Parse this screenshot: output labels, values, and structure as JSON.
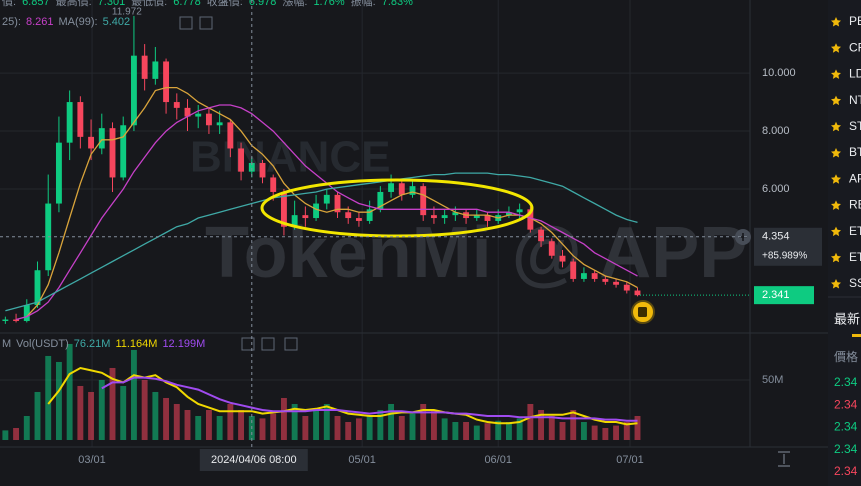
{
  "header": {
    "ohlc": [
      {
        "text": "價:",
        "color": "#848e9c"
      },
      {
        "text": "6.857",
        "color": "#0ecb81"
      },
      {
        "text": "最高價:",
        "color": "#848e9c"
      },
      {
        "text": "7.301",
        "color": "#0ecb81"
      },
      {
        "text": "最低價:",
        "color": "#848e9c"
      },
      {
        "text": "6.778",
        "color": "#0ecb81"
      },
      {
        "text": "收盤價:",
        "color": "#848e9c"
      },
      {
        "text": "6.978",
        "color": "#0ecb81"
      },
      {
        "text": "漲幅:",
        "color": "#848e9c"
      },
      {
        "text": "1.76%",
        "color": "#0ecb81"
      },
      {
        "text": "振幅:",
        "color": "#848e9c"
      },
      {
        "text": "7.83%",
        "color": "#0ecb81"
      }
    ],
    "ma": [
      {
        "text": "25):",
        "color": "#848e9c"
      },
      {
        "text": "8.261",
        "color": "#c640c8"
      },
      {
        "text": "MA(99):",
        "color": "#848e9c"
      },
      {
        "text": "5.402",
        "color": "#3fa9a6"
      }
    ],
    "vol": [
      {
        "text": "M",
        "color": "#848e9c"
      },
      {
        "text": "Vol(USDT)",
        "color": "#848e9c"
      },
      {
        "text": "76.21M",
        "color": "#3fa9a6"
      },
      {
        "text": "11.164M",
        "color": "#f0d800"
      },
      {
        "text": "12.199M",
        "color": "#a04bf0"
      }
    ]
  },
  "watermark": {
    "brand": "BINANCE",
    "text": "TokenMi @ APP"
  },
  "chart_data": {
    "type": "candlestick",
    "high_label": "11.972",
    "up_color": "#0ecb81",
    "down_color": "#f6465d",
    "xlim": [
      -0.5,
      69.5
    ],
    "xticks": [
      {
        "value": 8.09,
        "label": "03/01"
      },
      {
        "value": 33.3,
        "label": "05/01"
      },
      {
        "value": 46.0,
        "label": "06/01"
      },
      {
        "value": 58.3,
        "label": "07/01"
      }
    ],
    "ylim": [
      1.07,
      12.52
    ],
    "yticks": [
      {
        "value": 6,
        "label": "6.000"
      },
      {
        "value": 8,
        "label": "8.000"
      },
      {
        "value": 10,
        "label": "10.000"
      }
    ],
    "grid": true,
    "open": [
      1.45,
      1.5,
      1.45,
      2.0,
      3.2,
      5.5,
      7.6,
      9.0,
      7.8,
      7.4,
      8.1,
      6.4,
      8.2,
      10.6,
      9.8,
      10.4,
      9.0,
      8.8,
      8.5,
      8.6,
      8.2,
      8.3,
      7.4,
      6.6,
      6.9,
      6.4,
      5.9,
      4.7,
      5.1,
      5.0,
      5.5,
      5.8,
      5.2,
      5.0,
      4.9,
      5.3,
      5.9,
      6.2,
      5.8,
      6.1,
      5.1,
      5.0,
      5.1,
      5.2,
      5.0,
      5.1,
      4.9,
      5.1,
      5.2,
      5.3,
      4.6,
      4.2,
      3.7,
      3.5,
      2.9,
      3.1,
      2.9,
      2.8,
      2.7,
      2.5
    ],
    "close": [
      1.5,
      1.45,
      2.0,
      3.2,
      5.5,
      7.6,
      9.0,
      7.8,
      7.4,
      8.1,
      6.4,
      8.2,
      10.6,
      9.8,
      10.4,
      9.0,
      8.8,
      8.5,
      8.6,
      8.2,
      8.3,
      7.4,
      6.6,
      6.9,
      6.4,
      5.9,
      4.7,
      5.1,
      5.0,
      5.5,
      5.8,
      5.2,
      5.0,
      4.9,
      5.3,
      5.9,
      6.2,
      5.8,
      6.1,
      5.1,
      5.0,
      5.1,
      5.2,
      5.0,
      5.1,
      4.9,
      5.1,
      5.2,
      5.3,
      4.6,
      4.2,
      3.7,
      3.5,
      2.9,
      3.1,
      2.9,
      2.8,
      2.7,
      2.5,
      2.34
    ],
    "high": [
      1.6,
      1.7,
      2.2,
      3.5,
      6.5,
      8.5,
      9.4,
      9.2,
      8.4,
      8.6,
      8.3,
      8.5,
      11.97,
      11.0,
      10.9,
      10.5,
      9.3,
      9.1,
      8.9,
      8.8,
      8.7,
      8.4,
      7.6,
      7.1,
      7.0,
      6.5,
      6.0,
      5.6,
      5.4,
      5.8,
      6.0,
      5.9,
      5.4,
      5.2,
      5.6,
      6.1,
      6.5,
      6.3,
      6.3,
      6.2,
      5.4,
      5.3,
      5.4,
      5.3,
      5.3,
      5.2,
      5.3,
      5.4,
      5.5,
      5.4,
      4.7,
      4.3,
      3.9,
      3.6,
      3.3,
      3.2,
      3.0,
      2.9,
      2.8,
      2.6
    ],
    "low": [
      1.35,
      1.4,
      1.4,
      1.9,
      3.0,
      5.2,
      7.0,
      7.4,
      7.0,
      7.2,
      5.9,
      6.3,
      8.0,
      9.4,
      9.6,
      8.6,
      8.4,
      8.0,
      8.1,
      7.9,
      7.9,
      7.1,
      6.3,
      6.4,
      6.2,
      5.6,
      4.4,
      4.6,
      4.7,
      4.9,
      5.3,
      5.0,
      4.8,
      4.7,
      4.8,
      5.2,
      5.7,
      5.6,
      5.7,
      4.9,
      4.8,
      4.8,
      4.9,
      4.8,
      4.9,
      4.7,
      4.8,
      5.0,
      5.0,
      4.5,
      4.0,
      3.6,
      3.3,
      2.8,
      2.8,
      2.8,
      2.7,
      2.6,
      2.4,
      2.3
    ],
    "lines": [
      {
        "color": "#d9a43b",
        "values": [
          null,
          null,
          1.6,
          2.0,
          2.7,
          3.8,
          5.0,
          6.2,
          7.2,
          7.7,
          7.7,
          7.8,
          8.3,
          8.8,
          9.4,
          9.5,
          9.5,
          9.3,
          9.0,
          8.8,
          8.6,
          8.4,
          8.0,
          7.5,
          7.2,
          6.8,
          6.2,
          5.8,
          5.5,
          5.3,
          5.2,
          5.3,
          5.3,
          5.2,
          5.2,
          5.4,
          5.6,
          5.8,
          5.9,
          5.8,
          5.6,
          5.4,
          5.2,
          5.1,
          5.1,
          5.1,
          5.0,
          5.1,
          5.1,
          5.0,
          4.8,
          4.5,
          4.1,
          3.7,
          3.4,
          3.2,
          3.0,
          2.9,
          2.8,
          2.6
        ]
      },
      {
        "color": "#c640c8",
        "values": [
          null,
          1.5,
          1.6,
          1.8,
          2.1,
          2.6,
          3.2,
          3.8,
          4.4,
          5.0,
          5.5,
          6.0,
          6.6,
          7.1,
          7.6,
          8.0,
          8.3,
          8.5,
          8.7,
          8.8,
          8.9,
          8.9,
          8.8,
          8.6,
          8.3,
          8.0,
          7.6,
          7.2,
          6.8,
          6.5,
          6.2,
          5.9,
          5.7,
          5.5,
          5.4,
          5.3,
          5.3,
          5.3,
          5.3,
          5.3,
          5.3,
          5.3,
          5.3,
          5.3,
          5.3,
          5.2,
          5.2,
          5.2,
          5.1,
          5.0,
          4.9,
          4.7,
          4.5,
          4.3,
          4.1,
          3.8,
          3.6,
          3.4,
          3.2,
          3.0
        ]
      },
      {
        "color": "#3fa9a6",
        "values": [
          1.8,
          1.9,
          2.0,
          2.1,
          2.3,
          2.5,
          2.7,
          2.9,
          3.1,
          3.3,
          3.5,
          3.7,
          3.9,
          4.1,
          4.3,
          4.5,
          4.7,
          4.8,
          5.0,
          5.1,
          5.2,
          5.3,
          5.4,
          5.5,
          5.6,
          5.7,
          5.75,
          5.8,
          5.85,
          5.9,
          6.0,
          6.05,
          6.1,
          6.15,
          6.2,
          6.25,
          6.3,
          6.35,
          6.4,
          6.45,
          6.5,
          6.5,
          6.55,
          6.55,
          6.55,
          6.55,
          6.5,
          6.5,
          6.45,
          6.4,
          6.3,
          6.2,
          6.1,
          5.9,
          5.7,
          5.5,
          5.3,
          5.1,
          4.95,
          4.85
        ]
      }
    ],
    "crosshair": {
      "index": 23,
      "price": 4.354,
      "change_label": "+85.989%",
      "date_label": "2024/04/06 08:00"
    },
    "last_price": 2.341,
    "volume": {
      "ylim": [
        0,
        83.3
      ],
      "yticks": [
        {
          "value": 50,
          "label": "50M"
        }
      ],
      "values": [
        8,
        10,
        20,
        40,
        70,
        65,
        80,
        45,
        40,
        50,
        60,
        45,
        75,
        50,
        40,
        35,
        30,
        25,
        20,
        25,
        20,
        30,
        25,
        20,
        18,
        22,
        35,
        30,
        20,
        25,
        30,
        20,
        15,
        18,
        20,
        25,
        30,
        20,
        22,
        30,
        25,
        18,
        15,
        15,
        12,
        14,
        16,
        15,
        18,
        30,
        25,
        20,
        15,
        25,
        15,
        12,
        10,
        12,
        15,
        20
      ],
      "lines": [
        {
          "color": "#f0d800",
          "values": [
            null,
            null,
            null,
            null,
            30,
            41,
            55,
            60,
            58,
            56,
            51,
            48,
            54,
            52,
            54,
            48,
            44,
            36,
            30,
            27,
            24,
            24,
            24,
            24,
            22,
            23,
            24,
            26,
            25,
            26,
            28,
            25,
            22,
            21,
            20,
            20,
            22,
            23,
            23,
            25,
            25,
            23,
            22,
            21,
            17,
            15,
            14,
            14,
            15,
            19,
            21,
            21,
            21,
            23,
            20,
            17,
            15,
            15,
            13,
            14
          ]
        },
        {
          "color": "#a04bf0",
          "values": [
            null,
            null,
            null,
            null,
            null,
            null,
            null,
            null,
            null,
            43,
            48,
            48,
            52,
            52,
            51,
            49,
            46,
            44,
            42,
            38,
            34,
            31,
            29,
            27,
            25,
            24,
            24,
            24,
            24,
            25,
            25,
            25,
            24,
            23,
            22,
            23,
            24,
            24,
            23,
            23,
            23,
            23,
            22,
            22,
            21,
            20,
            20,
            20,
            19,
            19,
            19,
            19,
            18,
            18,
            18,
            18,
            17,
            17,
            16,
            16
          ]
        }
      ]
    }
  },
  "sidebar": {
    "symbols": [
      "PE",
      "CR",
      "LD",
      "NT",
      "ST",
      "BT",
      "AP",
      "RE",
      "ET",
      "ET",
      "SS"
    ],
    "tab": "最新",
    "column": "價格",
    "prices": [
      {
        "text": "2.34",
        "color": "#0ecb81"
      },
      {
        "text": "2.34",
        "color": "#f6465d"
      },
      {
        "text": "2.34",
        "color": "#0ecb81"
      },
      {
        "text": "2.34",
        "color": "#0ecb81"
      },
      {
        "text": "2.34",
        "color": "#f6465d"
      }
    ]
  }
}
